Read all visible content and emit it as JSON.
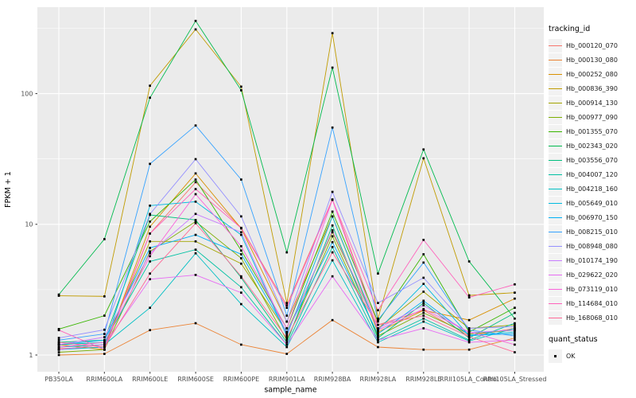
{
  "figure": {
    "background": "#FFFFFF",
    "panel_background": "#EBEBEB",
    "gridline_color": "#FFFFFF",
    "tick_color": "#333333",
    "tick_label_color": "#4D4D4D",
    "axis_title_color": "#000000",
    "point_color": "#000000",
    "legend_key_background": "#F2F2F2"
  },
  "axes": {
    "x_title": "sample_name",
    "y_title": "FPKM + 1",
    "y_tick_labels": [
      "1",
      "10",
      "100"
    ]
  },
  "legend": {
    "tracking_title": "tracking_id",
    "quant_title": "quant_status",
    "quant_ok_label": "OK"
  },
  "chart_data": {
    "type": "line",
    "title": "",
    "xlabel": "sample_name",
    "ylabel": "FPKM + 1",
    "y_scale": "log10",
    "ylim": [
      0.75,
      460
    ],
    "y_major_ticks": [
      1,
      10,
      100
    ],
    "y_minor_ticks": [
      3.1623,
      31.623,
      316.23
    ],
    "grid": "on",
    "legend_position": "right",
    "point_marker": "filled-square",
    "categories": [
      "PB350LA",
      "RRIM600LA",
      "RRIM600LE",
      "RRIM600SE",
      "RRIM600PE",
      "RRIM901LA",
      "RRIM928BA",
      "RRIM928LA",
      "RRIM928LE",
      "RRII105LA_Control",
      "RRII105LA_Stressed"
    ],
    "series": [
      {
        "name": "Hb_000120_070",
        "color": "#F8766D",
        "values": [
          1.12,
          1.15,
          8.5,
          21,
          9.4,
          2.4,
          15.5,
          1.7,
          2.2,
          1.4,
          1.6
        ]
      },
      {
        "name": "Hb_000130_080",
        "color": "#EB8335",
        "values": [
          1.0,
          1.02,
          1.55,
          1.75,
          1.2,
          1.02,
          1.85,
          1.15,
          1.1,
          1.1,
          1.35
        ]
      },
      {
        "name": "Hb_000252_080",
        "color": "#D89000",
        "values": [
          1.2,
          1.1,
          9.6,
          24.5,
          9.3,
          1.8,
          11.5,
          1.5,
          2.2,
          1.85,
          2.7
        ]
      },
      {
        "name": "Hb_000836_390",
        "color": "#C09B00",
        "values": [
          2.84,
          2.81,
          115,
          310,
          113,
          2.5,
          290,
          1.9,
          32,
          2.86,
          3.0
        ]
      },
      {
        "name": "Hb_000914_130",
        "color": "#A3A500",
        "values": [
          1.1,
          1.2,
          7.4,
          7.4,
          5.0,
          1.5,
          8.7,
          1.6,
          3.05,
          1.6,
          1.7
        ]
      },
      {
        "name": "Hb_000977_090",
        "color": "#7CAE00",
        "values": [
          1.05,
          1.1,
          6.2,
          10.5,
          5.5,
          1.3,
          8.1,
          1.4,
          2.1,
          1.45,
          1.55
        ]
      },
      {
        "name": "Hb_001355_070",
        "color": "#39B600",
        "values": [
          1.58,
          2.0,
          10.5,
          22,
          6.3,
          1.6,
          12.5,
          1.8,
          5.9,
          1.5,
          2.3
        ]
      },
      {
        "name": "Hb_002343_020",
        "color": "#00BB4E",
        "values": [
          2.9,
          7.7,
          93,
          360,
          106,
          6.1,
          158,
          4.2,
          37.4,
          5.2,
          1.9
        ]
      },
      {
        "name": "Hb_003556_070",
        "color": "#00BF7D",
        "values": [
          1.25,
          1.3,
          11.8,
          10.8,
          3.9,
          1.25,
          9.8,
          1.35,
          2.5,
          1.35,
          2.1
        ]
      },
      {
        "name": "Hb_004007_120",
        "color": "#00C1A3",
        "values": [
          1.2,
          1.25,
          5.2,
          6.4,
          3.3,
          1.2,
          6.7,
          1.3,
          1.9,
          1.3,
          1.75
        ]
      },
      {
        "name": "Hb_004218_160",
        "color": "#00BFC4",
        "values": [
          1.15,
          1.2,
          2.3,
          6.0,
          2.45,
          1.15,
          5.3,
          1.25,
          1.8,
          1.28,
          1.6
        ]
      },
      {
        "name": "Hb_005649_010",
        "color": "#00BAE0",
        "values": [
          1.1,
          1.15,
          13.9,
          14.9,
          8.3,
          1.4,
          11.5,
          1.55,
          3.5,
          1.4,
          1.5
        ]
      },
      {
        "name": "Hb_006970_150",
        "color": "#00B0F6",
        "values": [
          1.2,
          1.3,
          6.6,
          8.3,
          5.9,
          1.5,
          7.3,
          1.45,
          2.6,
          1.42,
          1.45
        ]
      },
      {
        "name": "Hb_008215_010",
        "color": "#35A2FF",
        "values": [
          1.3,
          1.45,
          29,
          57,
          22,
          2.0,
          55,
          1.85,
          5.1,
          1.55,
          1.4
        ]
      },
      {
        "name": "Hb_008948_080",
        "color": "#9590FF",
        "values": [
          1.35,
          1.56,
          12,
          31.5,
          11.5,
          1.8,
          17.7,
          2.5,
          3.9,
          1.6,
          1.65
        ]
      },
      {
        "name": "Hb_010174_190",
        "color": "#C77CFF",
        "values": [
          1.2,
          1.37,
          6.0,
          12,
          8.7,
          1.45,
          9.0,
          1.6,
          2.4,
          1.48,
          1.55
        ]
      },
      {
        "name": "Hb_029622_020",
        "color": "#E76BF3",
        "values": [
          1.1,
          1.2,
          3.8,
          4.1,
          3.0,
          1.2,
          4.0,
          1.3,
          1.6,
          1.25,
          1.3
        ]
      },
      {
        "name": "Hb_073119_010",
        "color": "#FA62DB",
        "values": [
          1.15,
          1.25,
          5.7,
          17,
          6.8,
          1.6,
          15.4,
          1.55,
          2.25,
          1.5,
          1.2
        ]
      },
      {
        "name": "Hb_114684_010",
        "color": "#FF62BC",
        "values": [
          1.55,
          1.1,
          8.5,
          18.6,
          9.35,
          2.3,
          15.4,
          2.2,
          7.6,
          2.76,
          3.47
        ]
      },
      {
        "name": "Hb_168068_010",
        "color": "#FF6A98",
        "values": [
          1.25,
          1.15,
          4.2,
          10.2,
          4.0,
          1.35,
          6.1,
          1.7,
          2.0,
          1.38,
          1.05
        ]
      }
    ]
  }
}
